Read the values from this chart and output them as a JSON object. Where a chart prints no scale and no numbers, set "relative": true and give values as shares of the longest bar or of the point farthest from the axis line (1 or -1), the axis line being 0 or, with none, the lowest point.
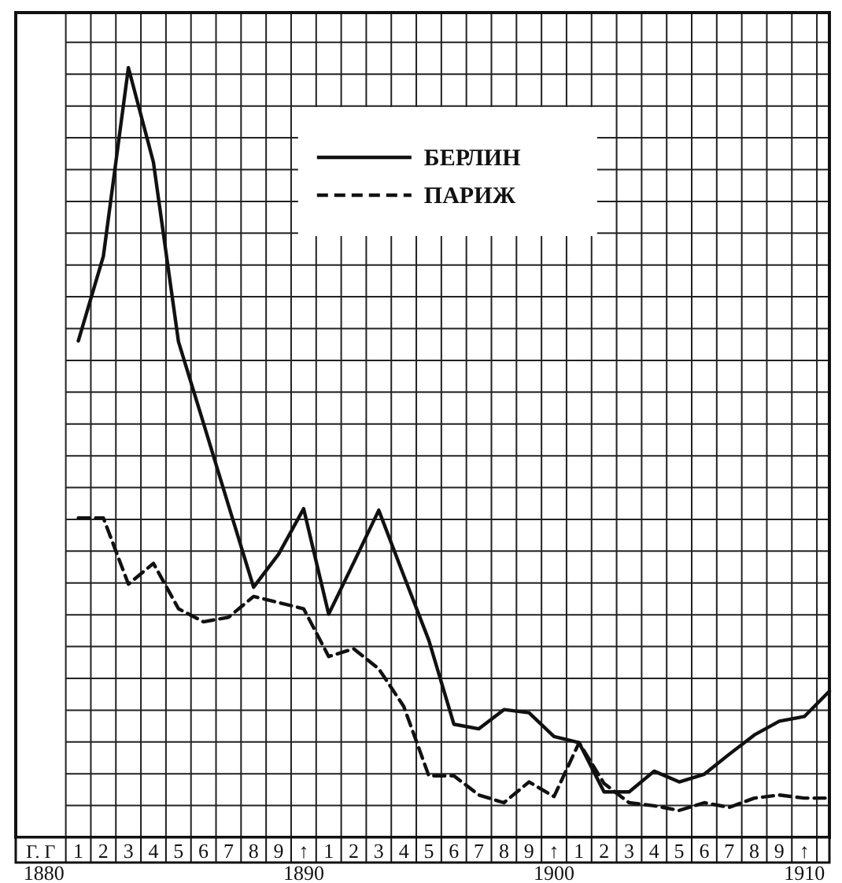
{
  "chart_data": {
    "type": "line",
    "relative": true,
    "categories": [
      "Г. Г\n1880",
      "1",
      "2",
      "3",
      "4",
      "5",
      "6",
      "7",
      "8",
      "9",
      "↑\n1890",
      "1",
      "2",
      "3",
      "4",
      "5",
      "6",
      "7",
      "8",
      "9",
      "↑\n1900",
      "1",
      "2",
      "3",
      "4",
      "5",
      "6",
      "7",
      "8",
      "9",
      "↑\n1910",
      null
    ],
    "grid": true,
    "legend": "top",
    "series": [
      {
        "name": "БЕРЛИН",
        "color": "#111111",
        "line_style": "solid",
        "values": [
          null,
          0.645,
          0.755,
          1,
          0.877,
          0.644,
          0.538,
          0.431,
          0.325,
          0.368,
          0.427,
          0.29,
          0.357,
          0.425,
          0.34,
          0.256,
          0.147,
          0.141,
          0.166,
          0.162,
          0.131,
          0.123,
          0.059,
          0.059,
          0.086,
          0.072,
          0.082,
          0.108,
          0.133,
          0.151,
          0.157,
          0.19
        ]
      },
      {
        "name": "ПАРИЖ",
        "color": "#111111",
        "line_style": "dashed",
        "values": [
          null,
          0.415,
          0.415,
          0.329,
          0.356,
          0.297,
          0.28,
          0.286,
          0.313,
          0.305,
          0.297,
          0.235,
          0.245,
          0.219,
          0.17,
          0.08,
          0.08,
          0.055,
          0.045,
          0.072,
          0.053,
          0.123,
          0.07,
          0.045,
          0.041,
          0.035,
          0.045,
          0.039,
          0.051,
          0.055,
          0.051,
          0.051
        ]
      }
    ]
  }
}
